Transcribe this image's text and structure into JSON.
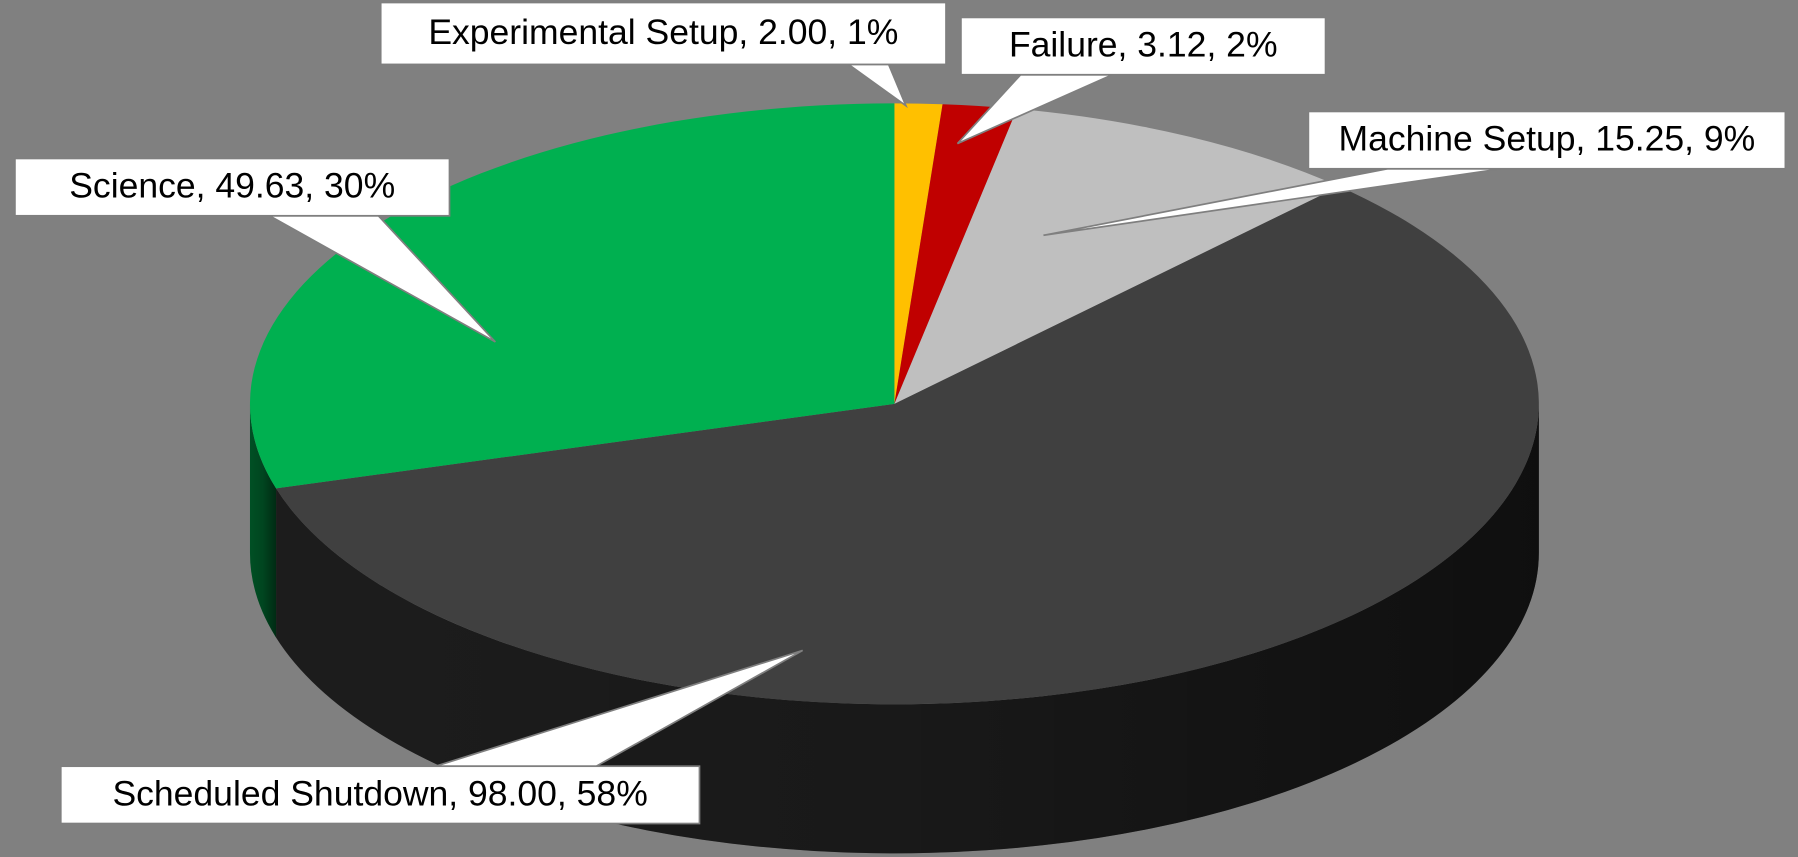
{
  "chart_data": {
    "type": "pie3d",
    "categories": [
      "Experimental Setup",
      "Failure",
      "Machine Setup",
      "Scheduled Shutdown",
      "Science"
    ],
    "values": [
      2.0,
      3.12,
      15.25,
      98.0,
      49.63
    ],
    "data_labels": [
      "Experimental Setup, 2.00, 1%",
      "Failure, 3.12, 2%",
      "Machine Setup, 15.25, 9%",
      "Scheduled Shutdown, 98.00, 58%",
      "Science, 49.63, 30%"
    ],
    "colors": [
      "#ffc000",
      "#c00000",
      "#bfbfbf",
      "#404040",
      "#00b050"
    ]
  }
}
